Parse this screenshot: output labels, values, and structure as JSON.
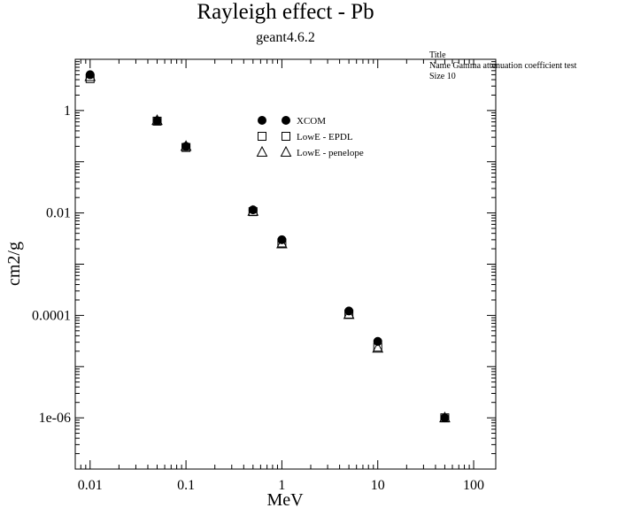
{
  "chart_data": {
    "type": "scatter",
    "title": "Rayleigh effect - Pb",
    "subtitle": "geant4.6.2",
    "xlabel": "MeV",
    "ylabel": "cm2/g",
    "xscale": "log",
    "yscale": "log",
    "xlim": [
      0.007,
      170
    ],
    "ylim": [
      1e-07,
      10
    ],
    "x_ticks": [
      0.01,
      0.1,
      1,
      10,
      100
    ],
    "x_tick_labels": [
      "0.01",
      "0.1",
      "1",
      "10",
      "100"
    ],
    "y_ticks": [
      1e-06,
      0.0001,
      0.01,
      1
    ],
    "y_tick_labels": [
      "1e-06",
      "0.0001",
      "0.01",
      "1"
    ],
    "grid": false,
    "legend_position": "top-center",
    "series": [
      {
        "name": "XCOM",
        "marker": "filled-circle",
        "x": [
          0.01,
          0.05,
          0.1,
          0.5,
          1,
          5,
          10,
          50
        ],
        "y": [
          5.0,
          0.63,
          0.2,
          0.0115,
          0.003,
          0.000122,
          3.1e-05,
          1e-06
        ]
      },
      {
        "name": "LowE - EPDL",
        "marker": "open-square",
        "x": [
          0.01,
          0.05,
          0.1,
          0.5,
          1,
          5,
          10,
          50
        ],
        "y": [
          4.2,
          0.62,
          0.19,
          0.0106,
          0.0026,
          0.000106,
          2.4e-05,
          1e-06
        ]
      },
      {
        "name": "LowE - penelope",
        "marker": "open-triangle",
        "x": [
          0.01,
          0.05,
          0.1,
          0.5,
          1,
          5,
          10,
          50
        ],
        "y": [
          4.6,
          0.64,
          0.2,
          0.0108,
          0.0025,
          0.000104,
          2.3e-05,
          1e-06
        ]
      }
    ]
  },
  "stats_box": {
    "line1": "Title",
    "line2": "Name  Gamma attenuation coefficient test",
    "line3": "Size  10"
  }
}
